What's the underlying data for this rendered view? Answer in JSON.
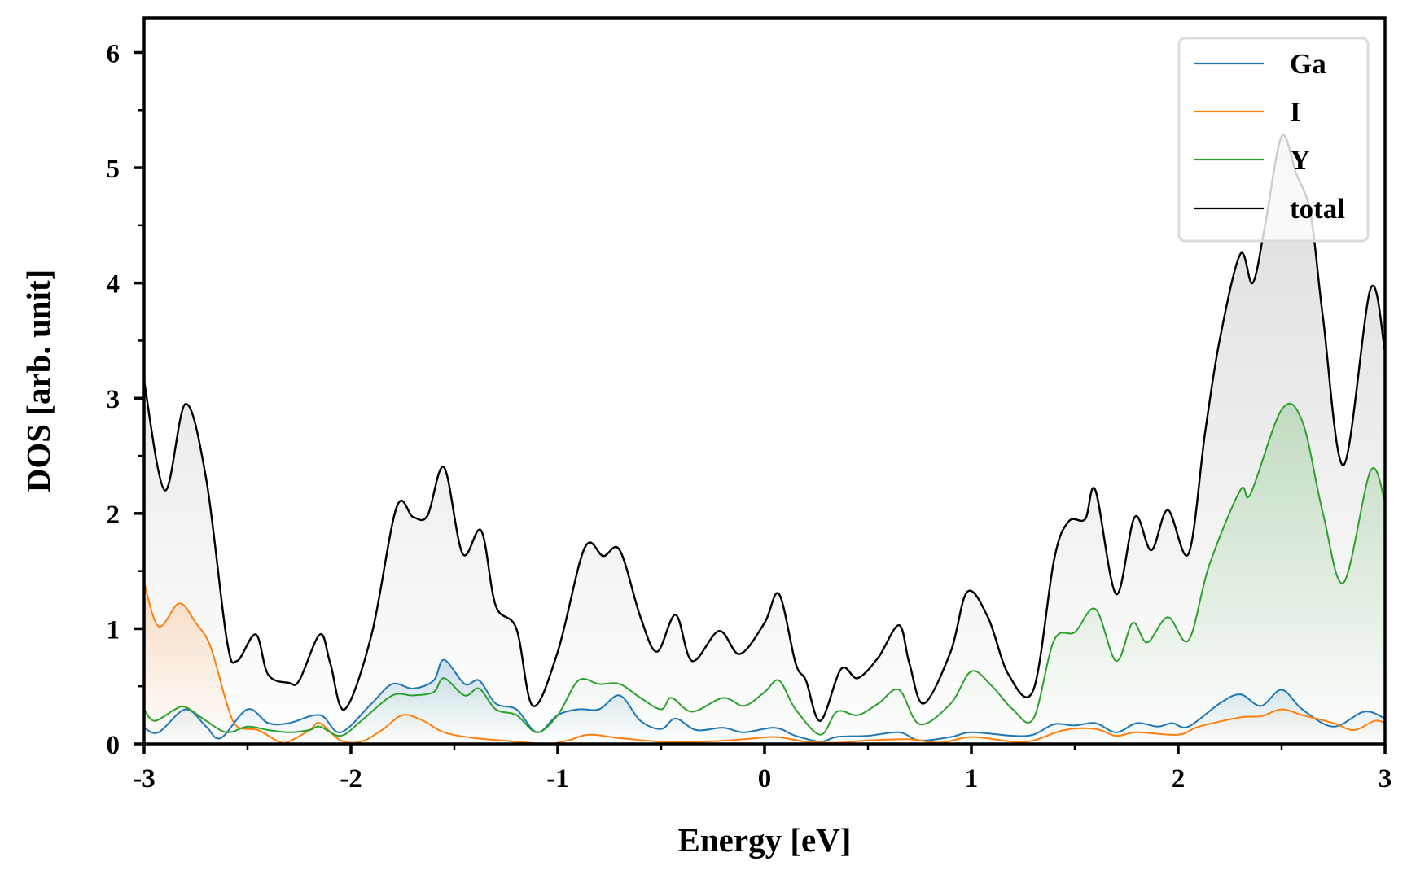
{
  "chart_data": {
    "type": "line",
    "xlabel": "Energy [eV]",
    "ylabel": "DOS [arb. unit]",
    "xlim": [
      -3,
      3
    ],
    "ylim": [
      0,
      6.3
    ],
    "xticks": [
      "-3",
      "-2",
      "-1",
      "0",
      "1",
      "2",
      "3"
    ],
    "yticks": [
      "0",
      "1",
      "2",
      "3",
      "4",
      "5",
      "6"
    ],
    "grid": false,
    "filled_under_curves": true,
    "legend_position": "top-right",
    "series": [
      {
        "name": "Ga",
        "color": "#1f77b4",
        "points": [
          [
            -3.0,
            0.14
          ],
          [
            -2.93,
            0.1
          ],
          [
            -2.8,
            0.3
          ],
          [
            -2.7,
            0.15
          ],
          [
            -2.63,
            0.05
          ],
          [
            -2.5,
            0.3
          ],
          [
            -2.4,
            0.18
          ],
          [
            -2.3,
            0.18
          ],
          [
            -2.15,
            0.25
          ],
          [
            -2.05,
            0.1
          ],
          [
            -1.9,
            0.35
          ],
          [
            -1.8,
            0.52
          ],
          [
            -1.7,
            0.48
          ],
          [
            -1.6,
            0.55
          ],
          [
            -1.55,
            0.73
          ],
          [
            -1.45,
            0.52
          ],
          [
            -1.38,
            0.55
          ],
          [
            -1.3,
            0.35
          ],
          [
            -1.2,
            0.3
          ],
          [
            -1.1,
            0.1
          ],
          [
            -1.0,
            0.25
          ],
          [
            -0.9,
            0.3
          ],
          [
            -0.8,
            0.3
          ],
          [
            -0.7,
            0.42
          ],
          [
            -0.6,
            0.2
          ],
          [
            -0.5,
            0.13
          ],
          [
            -0.43,
            0.22
          ],
          [
            -0.33,
            0.12
          ],
          [
            -0.2,
            0.14
          ],
          [
            -0.1,
            0.1
          ],
          [
            0.05,
            0.14
          ],
          [
            0.15,
            0.07
          ],
          [
            0.27,
            0.02
          ],
          [
            0.35,
            0.06
          ],
          [
            0.5,
            0.07
          ],
          [
            0.65,
            0.1
          ],
          [
            0.75,
            0.03
          ],
          [
            0.9,
            0.06
          ],
          [
            1.0,
            0.1
          ],
          [
            1.2,
            0.07
          ],
          [
            1.3,
            0.08
          ],
          [
            1.4,
            0.17
          ],
          [
            1.5,
            0.16
          ],
          [
            1.6,
            0.18
          ],
          [
            1.7,
            0.1
          ],
          [
            1.8,
            0.18
          ],
          [
            1.9,
            0.15
          ],
          [
            1.97,
            0.18
          ],
          [
            2.05,
            0.15
          ],
          [
            2.2,
            0.35
          ],
          [
            2.3,
            0.43
          ],
          [
            2.4,
            0.33
          ],
          [
            2.5,
            0.47
          ],
          [
            2.6,
            0.3
          ],
          [
            2.75,
            0.15
          ],
          [
            2.9,
            0.28
          ],
          [
            3.0,
            0.22
          ]
        ]
      },
      {
        "name": "I",
        "color": "#ff7f0e",
        "points": [
          [
            -3.0,
            1.4
          ],
          [
            -2.93,
            1.02
          ],
          [
            -2.83,
            1.22
          ],
          [
            -2.75,
            1.05
          ],
          [
            -2.68,
            0.85
          ],
          [
            -2.6,
            0.35
          ],
          [
            -2.55,
            0.15
          ],
          [
            -2.45,
            0.12
          ],
          [
            -2.35,
            0.02
          ],
          [
            -2.3,
            0.02
          ],
          [
            -2.2,
            0.12
          ],
          [
            -2.15,
            0.18
          ],
          [
            -2.05,
            0.03
          ],
          [
            -1.95,
            0.02
          ],
          [
            -1.85,
            0.12
          ],
          [
            -1.75,
            0.25
          ],
          [
            -1.65,
            0.2
          ],
          [
            -1.55,
            0.1
          ],
          [
            -1.4,
            0.05
          ],
          [
            -1.2,
            0.02
          ],
          [
            -1.05,
            0.0
          ],
          [
            -0.95,
            0.03
          ],
          [
            -0.85,
            0.08
          ],
          [
            -0.7,
            0.05
          ],
          [
            -0.5,
            0.02
          ],
          [
            -0.3,
            0.02
          ],
          [
            -0.1,
            0.04
          ],
          [
            0.05,
            0.06
          ],
          [
            0.2,
            0.02
          ],
          [
            0.35,
            0.01
          ],
          [
            0.5,
            0.03
          ],
          [
            0.7,
            0.04
          ],
          [
            0.85,
            0.01
          ],
          [
            1.0,
            0.06
          ],
          [
            1.2,
            0.02
          ],
          [
            1.3,
            0.03
          ],
          [
            1.45,
            0.12
          ],
          [
            1.6,
            0.13
          ],
          [
            1.7,
            0.07
          ],
          [
            1.8,
            0.1
          ],
          [
            2.0,
            0.08
          ],
          [
            2.1,
            0.15
          ],
          [
            2.3,
            0.23
          ],
          [
            2.4,
            0.24
          ],
          [
            2.5,
            0.3
          ],
          [
            2.6,
            0.25
          ],
          [
            2.75,
            0.18
          ],
          [
            2.85,
            0.12
          ],
          [
            2.95,
            0.2
          ],
          [
            3.0,
            0.18
          ]
        ]
      },
      {
        "name": "Y",
        "color": "#2ca02c",
        "points": [
          [
            -3.0,
            0.3
          ],
          [
            -2.95,
            0.2
          ],
          [
            -2.85,
            0.3
          ],
          [
            -2.8,
            0.32
          ],
          [
            -2.7,
            0.2
          ],
          [
            -2.6,
            0.1
          ],
          [
            -2.5,
            0.15
          ],
          [
            -2.4,
            0.12
          ],
          [
            -2.3,
            0.1
          ],
          [
            -2.2,
            0.12
          ],
          [
            -2.15,
            0.15
          ],
          [
            -2.05,
            0.07
          ],
          [
            -1.95,
            0.2
          ],
          [
            -1.8,
            0.42
          ],
          [
            -1.7,
            0.42
          ],
          [
            -1.6,
            0.45
          ],
          [
            -1.55,
            0.57
          ],
          [
            -1.45,
            0.42
          ],
          [
            -1.38,
            0.48
          ],
          [
            -1.3,
            0.3
          ],
          [
            -1.2,
            0.25
          ],
          [
            -1.1,
            0.1
          ],
          [
            -1.0,
            0.25
          ],
          [
            -0.9,
            0.55
          ],
          [
            -0.8,
            0.52
          ],
          [
            -0.7,
            0.52
          ],
          [
            -0.6,
            0.4
          ],
          [
            -0.5,
            0.3
          ],
          [
            -0.45,
            0.4
          ],
          [
            -0.35,
            0.28
          ],
          [
            -0.2,
            0.4
          ],
          [
            -0.1,
            0.33
          ],
          [
            0.0,
            0.45
          ],
          [
            0.07,
            0.55
          ],
          [
            0.15,
            0.3
          ],
          [
            0.27,
            0.08
          ],
          [
            0.35,
            0.28
          ],
          [
            0.45,
            0.25
          ],
          [
            0.55,
            0.35
          ],
          [
            0.65,
            0.47
          ],
          [
            0.75,
            0.17
          ],
          [
            0.9,
            0.35
          ],
          [
            1.0,
            0.63
          ],
          [
            1.1,
            0.5
          ],
          [
            1.2,
            0.3
          ],
          [
            1.3,
            0.22
          ],
          [
            1.4,
            0.9
          ],
          [
            1.5,
            0.97
          ],
          [
            1.6,
            1.17
          ],
          [
            1.7,
            0.72
          ],
          [
            1.78,
            1.05
          ],
          [
            1.85,
            0.88
          ],
          [
            1.95,
            1.1
          ],
          [
            2.05,
            0.9
          ],
          [
            2.15,
            1.55
          ],
          [
            2.3,
            2.2
          ],
          [
            2.35,
            2.17
          ],
          [
            2.5,
            2.9
          ],
          [
            2.6,
            2.8
          ],
          [
            2.7,
            2.0
          ],
          [
            2.8,
            1.4
          ],
          [
            2.93,
            2.37
          ],
          [
            3.0,
            2.1
          ]
        ]
      },
      {
        "name": "total",
        "color": "#000000",
        "points": [
          [
            -3.0,
            3.15
          ],
          [
            -2.9,
            2.2
          ],
          [
            -2.8,
            2.95
          ],
          [
            -2.7,
            2.3
          ],
          [
            -2.6,
            0.9
          ],
          [
            -2.55,
            0.72
          ],
          [
            -2.46,
            0.95
          ],
          [
            -2.4,
            0.6
          ],
          [
            -2.3,
            0.53
          ],
          [
            -2.25,
            0.55
          ],
          [
            -2.15,
            0.95
          ],
          [
            -2.1,
            0.7
          ],
          [
            -2.03,
            0.3
          ],
          [
            -1.9,
            0.95
          ],
          [
            -1.78,
            2.05
          ],
          [
            -1.7,
            1.97
          ],
          [
            -1.63,
            1.98
          ],
          [
            -1.55,
            2.4
          ],
          [
            -1.46,
            1.65
          ],
          [
            -1.37,
            1.85
          ],
          [
            -1.3,
            1.2
          ],
          [
            -1.2,
            1.0
          ],
          [
            -1.12,
            0.33
          ],
          [
            -1.0,
            0.8
          ],
          [
            -0.87,
            1.7
          ],
          [
            -0.78,
            1.63
          ],
          [
            -0.7,
            1.68
          ],
          [
            -0.6,
            1.1
          ],
          [
            -0.52,
            0.8
          ],
          [
            -0.43,
            1.12
          ],
          [
            -0.35,
            0.72
          ],
          [
            -0.22,
            0.98
          ],
          [
            -0.12,
            0.78
          ],
          [
            0.0,
            1.05
          ],
          [
            0.07,
            1.3
          ],
          [
            0.15,
            0.7
          ],
          [
            0.2,
            0.55
          ],
          [
            0.27,
            0.2
          ],
          [
            0.37,
            0.65
          ],
          [
            0.45,
            0.57
          ],
          [
            0.55,
            0.75
          ],
          [
            0.65,
            1.03
          ],
          [
            0.7,
            0.7
          ],
          [
            0.77,
            0.35
          ],
          [
            0.9,
            0.8
          ],
          [
            0.98,
            1.32
          ],
          [
            1.08,
            1.1
          ],
          [
            1.18,
            0.6
          ],
          [
            1.3,
            0.47
          ],
          [
            1.4,
            1.6
          ],
          [
            1.47,
            1.93
          ],
          [
            1.55,
            1.95
          ],
          [
            1.6,
            2.2
          ],
          [
            1.7,
            1.3
          ],
          [
            1.79,
            1.97
          ],
          [
            1.87,
            1.68
          ],
          [
            1.95,
            2.03
          ],
          [
            2.05,
            1.65
          ],
          [
            2.13,
            2.7
          ],
          [
            2.2,
            3.5
          ],
          [
            2.3,
            4.25
          ],
          [
            2.36,
            4.0
          ],
          [
            2.42,
            4.5
          ],
          [
            2.5,
            5.27
          ],
          [
            2.57,
            4.95
          ],
          [
            2.64,
            4.6
          ],
          [
            2.7,
            3.7
          ],
          [
            2.8,
            2.42
          ],
          [
            2.93,
            3.95
          ],
          [
            3.0,
            3.4
          ]
        ]
      }
    ]
  }
}
